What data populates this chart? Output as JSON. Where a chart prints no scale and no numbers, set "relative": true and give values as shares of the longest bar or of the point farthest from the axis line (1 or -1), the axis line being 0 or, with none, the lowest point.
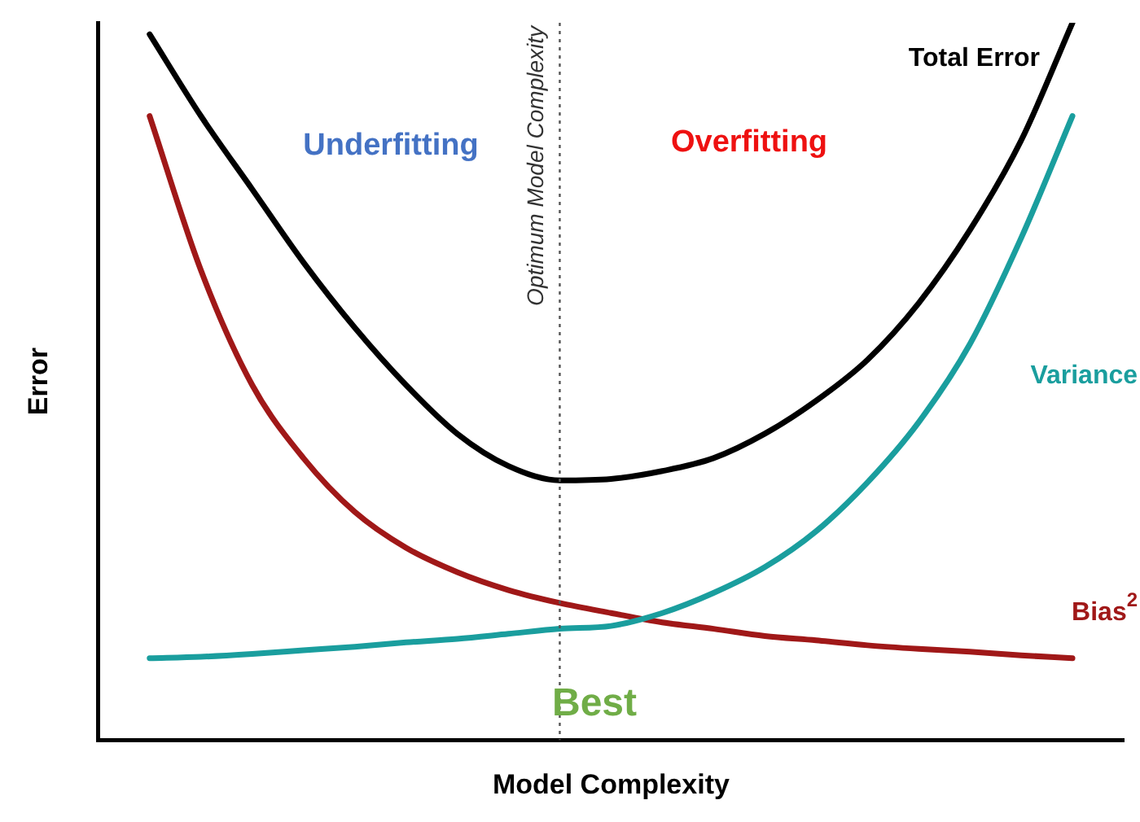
{
  "chart_data": {
    "type": "line",
    "relative": true,
    "xlabel": "Model Complexity",
    "ylabel": "Error",
    "categories": [
      null,
      null,
      null,
      null,
      null,
      null,
      null,
      null,
      null,
      null,
      null,
      null,
      null,
      null,
      null,
      null,
      null,
      null,
      null,
      null,
      null
    ],
    "series": [
      {
        "name": "Total Error",
        "color": "#000000",
        "values": [
          null,
          0.984,
          0.87,
          0.768,
          0.666,
          0.575,
          0.495,
          0.427,
          0.382,
          0.362,
          0.364,
          0.375,
          0.393,
          0.427,
          0.473,
          0.53,
          0.609,
          0.711,
          0.836,
          1,
          null
        ]
      },
      {
        "name": "Variance",
        "color": "#1a9e9e",
        "values": [
          null,
          0.114,
          0.116,
          0.12,
          0.125,
          0.13,
          0.136,
          0.141,
          0.148,
          0.155,
          0.159,
          0.177,
          0.205,
          0.241,
          0.291,
          0.359,
          0.443,
          0.552,
          0.7,
          0.87,
          null
        ]
      },
      {
        "name": "Bias$^{2}$",
        "color": "#a01818",
        "values": [
          null,
          0.87,
          0.655,
          0.495,
          0.393,
          0.318,
          0.268,
          0.234,
          0.209,
          0.191,
          0.177,
          0.164,
          0.155,
          0.145,
          0.139,
          0.132,
          0.127,
          0.123,
          0.118,
          0.114,
          null
        ]
      }
    ],
    "ref_lines": [
      {
        "axis": "x",
        "label": "Optimum Model Complexity",
        "line_style": "dotted",
        "color": "#555555"
      }
    ],
    "annotations": [
      "Underfitting",
      "Overfitting",
      "Best"
    ],
    "grid": false,
    "legend": false,
    "marker": "none",
    "line_style": "solid"
  }
}
